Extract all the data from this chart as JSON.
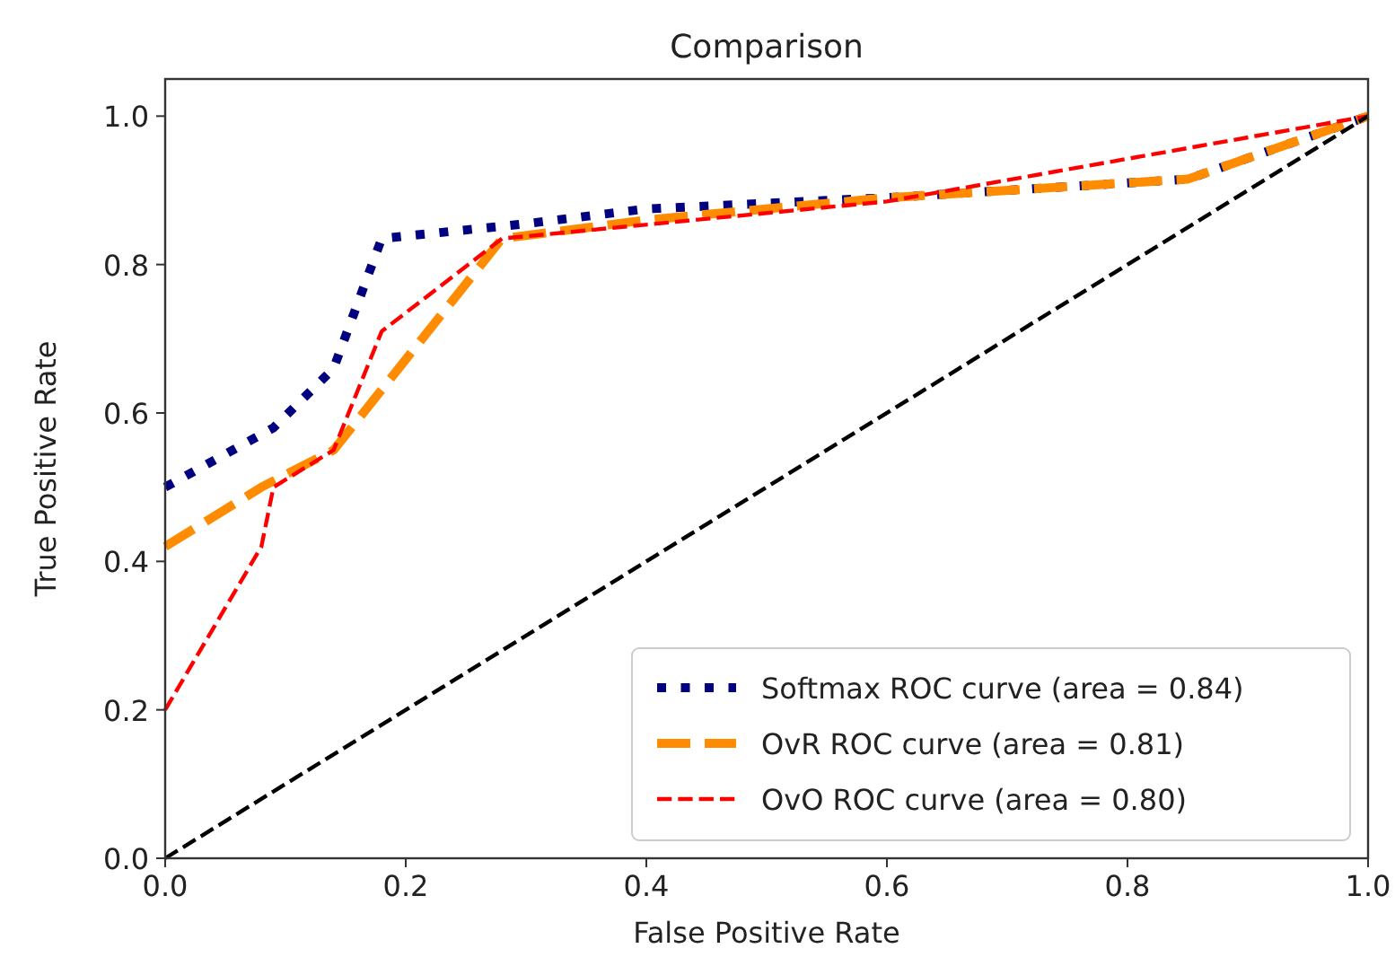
{
  "chart_data": {
    "type": "line",
    "title": "Comparison",
    "xlabel": "False Positive Rate",
    "ylabel": "True Positive Rate",
    "xlim": [
      0,
      1
    ],
    "ylim": [
      0,
      1.05
    ],
    "xticks": [
      {
        "value": 0,
        "label": "0.0"
      },
      0.2,
      0.4,
      0.6,
      0.8,
      {
        "value": 1,
        "label": "1.0"
      }
    ],
    "yticks": [
      {
        "value": 0,
        "label": "0.0"
      },
      0.2,
      0.4,
      0.6,
      0.8,
      {
        "value": 1,
        "label": "1.0"
      }
    ],
    "legend": "bottom right",
    "grid": false,
    "marker": "none",
    "series": [
      {
        "name": "Softmax ROC curve (area = 0.84)",
        "color": "#000080",
        "line_style": "dotted",
        "x": [
          0,
          0.09,
          0.14,
          0.18,
          0.3,
          0.4,
          0.6,
          0.85,
          1
        ],
        "values": [
          0.5,
          0.58,
          0.66,
          0.835,
          0.855,
          0.875,
          0.89,
          0.915,
          1
        ]
      },
      {
        "name": "OvR ROC curve (area = 0.81)",
        "color": "#ff8c00",
        "line_style": "dashed",
        "x": [
          0,
          0.08,
          0.14,
          0.28,
          0.4,
          0.6,
          0.85,
          1
        ],
        "values": [
          0.42,
          0.5,
          0.55,
          0.835,
          0.86,
          0.89,
          0.915,
          1
        ]
      },
      {
        "name": "OvO ROC curve (area = 0.80)",
        "color": "#ff0000",
        "line_style": "dashed",
        "x": [
          0,
          0.08,
          0.09,
          0.14,
          0.18,
          0.28,
          0.6,
          1
        ],
        "values": [
          0.2,
          0.42,
          0.5,
          0.55,
          0.71,
          0.835,
          0.885,
          1
        ]
      },
      {
        "color": "#000000",
        "line_style": "dashed",
        "x": [
          0,
          1
        ],
        "values": [
          0,
          1
        ]
      }
    ]
  }
}
